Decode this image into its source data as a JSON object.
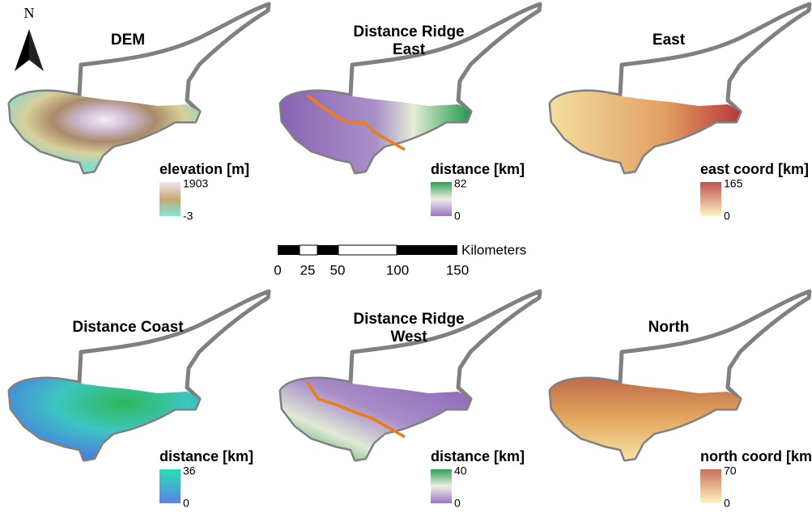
{
  "north_arrow": {
    "label": "N"
  },
  "panels": [
    {
      "title_lines": [
        "DEM"
      ],
      "legend_title": "elevation [m]",
      "legend_max": 1903,
      "legend_min": -3
    },
    {
      "title_lines": [
        "Distance Ridge",
        "East"
      ],
      "legend_title": "distance [km]",
      "legend_max": 82,
      "legend_min": 0
    },
    {
      "title_lines": [
        "East"
      ],
      "legend_title": "east coord [km]",
      "legend_max": 165,
      "legend_min": 0
    },
    {
      "title_lines": [
        "Distance Coast"
      ],
      "legend_title": "distance [km]",
      "legend_max": 36,
      "legend_min": 0
    },
    {
      "title_lines": [
        "Distance Ridge",
        "West"
      ],
      "legend_title": "distance [km]",
      "legend_max": 40,
      "legend_min": 0
    },
    {
      "title_lines": [
        "North"
      ],
      "legend_title": "north coord [km]",
      "legend_max": 70,
      "legend_min": 0
    }
  ],
  "scale_bar": {
    "unit": "Kilometers",
    "ticks": [
      0,
      25,
      50,
      100,
      150
    ]
  }
}
